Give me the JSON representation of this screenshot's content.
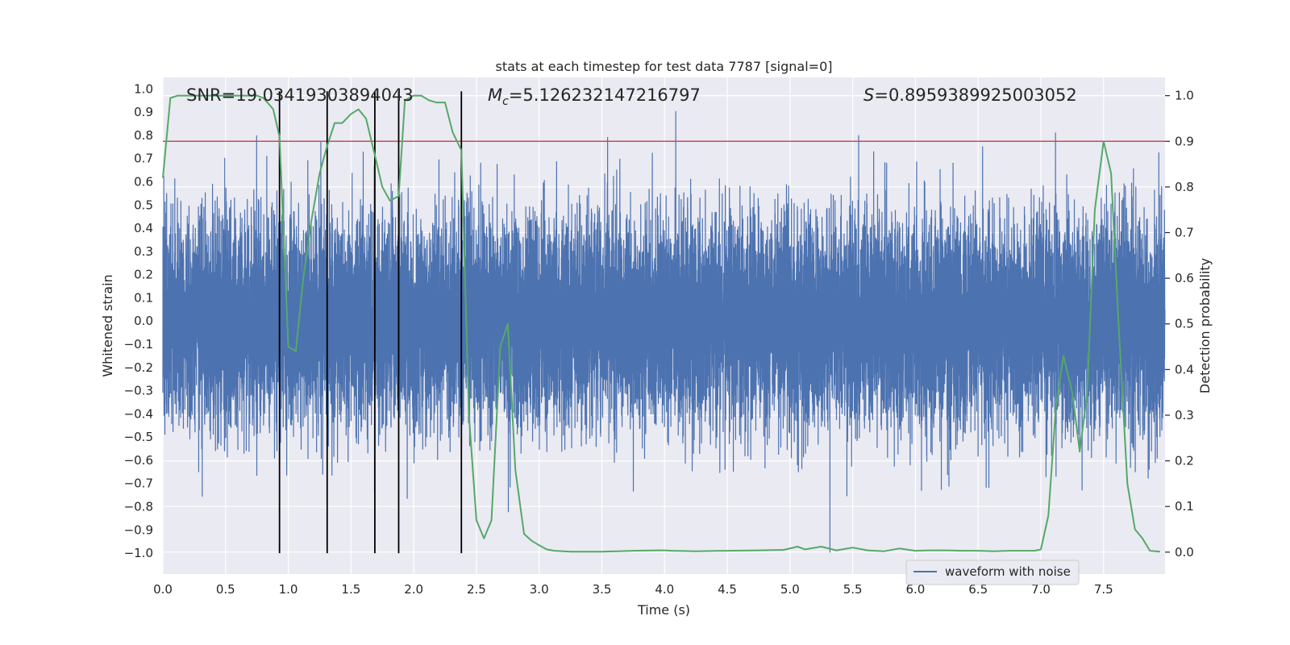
{
  "chart_data": {
    "type": "line",
    "title": "stats at each timestep for test data 7787 [signal=0]",
    "xlabel": "Time (s)",
    "ylabel": "Whitened strain",
    "y2label": "Detection probability",
    "xlim": [
      0.0,
      7.99
    ],
    "ylim": [
      -1.09,
      1.05
    ],
    "y2lim": [
      -0.048,
      1.04
    ],
    "xticks": [
      0.0,
      0.5,
      1.0,
      1.5,
      2.0,
      2.5,
      3.0,
      3.5,
      4.0,
      4.5,
      5.0,
      5.5,
      6.0,
      6.5,
      7.0,
      7.5
    ],
    "yticks": [
      1.0,
      0.9,
      0.8,
      0.7,
      0.6,
      0.5,
      0.4,
      0.3,
      0.2,
      0.1,
      0.0,
      -0.1,
      -0.2,
      -0.3,
      -0.4,
      -0.5,
      -0.6,
      -0.7,
      -0.8,
      -0.9,
      -1.0
    ],
    "y2ticks": [
      1.0,
      0.9,
      0.8,
      0.7,
      0.6,
      0.5,
      0.4,
      0.3,
      0.2,
      0.1,
      0.0
    ],
    "grid": true,
    "annotations": {
      "snr": "SNR=19.03419303894043",
      "mc_symbol": "M",
      "mc_sub": "c",
      "mc_value": "=5.126232147216797",
      "s_symbol": "S",
      "s_value": "=0.8959389925003052"
    },
    "legend": {
      "label": "waveform with noise",
      "location": "lower-right"
    },
    "threshold": {
      "value": 0.9,
      "axis": "right",
      "color": "#c44e52"
    },
    "vertical_markers": {
      "x": [
        0.93,
        1.31,
        1.69,
        1.88,
        2.38
      ],
      "y_from": -1.0,
      "y_to": 0.99,
      "color": "#000000"
    },
    "series": [
      {
        "name": "waveform with noise",
        "axis": "left",
        "color": "#4c72b0",
        "sample_rate_hz": 2048,
        "noise_scale": 0.22,
        "seed": 7787
      },
      {
        "name": "detection probability",
        "axis": "right",
        "color": "#55a868",
        "x": [
          0.0,
          0.06,
          0.12,
          0.25,
          0.5,
          0.75,
          0.8,
          0.85,
          0.88,
          0.93,
          1.0,
          1.06,
          1.12,
          1.18,
          1.25,
          1.31,
          1.37,
          1.43,
          1.5,
          1.56,
          1.62,
          1.69,
          1.75,
          1.81,
          1.88,
          1.93,
          2.0,
          2.06,
          2.12,
          2.18,
          2.25,
          2.31,
          2.38,
          2.44,
          2.5,
          2.56,
          2.62,
          2.69,
          2.75,
          2.81,
          2.88,
          2.94,
          3.0,
          3.06,
          3.12,
          3.25,
          3.5,
          3.75,
          3.95,
          4.0,
          4.06,
          4.25,
          4.5,
          4.75,
          4.95,
          5.06,
          5.12,
          5.25,
          5.37,
          5.5,
          5.62,
          5.75,
          5.87,
          6.0,
          6.12,
          6.25,
          6.37,
          6.5,
          6.62,
          6.75,
          6.87,
          6.95,
          7.0,
          7.06,
          7.12,
          7.18,
          7.25,
          7.31,
          7.37,
          7.43,
          7.5,
          7.56,
          7.62,
          7.69,
          7.75,
          7.81,
          7.87,
          7.95
        ],
        "y": [
          0.82,
          0.995,
          1.0,
          1.0,
          1.0,
          1.0,
          0.995,
          0.98,
          0.97,
          0.91,
          0.45,
          0.44,
          0.6,
          0.72,
          0.83,
          0.89,
          0.94,
          0.94,
          0.96,
          0.97,
          0.95,
          0.87,
          0.8,
          0.77,
          0.78,
          0.99,
          1.0,
          1.0,
          0.99,
          0.985,
          0.985,
          0.92,
          0.88,
          0.3,
          0.07,
          0.03,
          0.07,
          0.45,
          0.5,
          0.18,
          0.04,
          0.025,
          0.015,
          0.006,
          0.003,
          0.001,
          0.001,
          0.003,
          0.004,
          0.004,
          0.003,
          0.002,
          0.003,
          0.004,
          0.005,
          0.012,
          0.006,
          0.012,
          0.004,
          0.01,
          0.004,
          0.002,
          0.008,
          0.003,
          0.004,
          0.004,
          0.003,
          0.003,
          0.002,
          0.003,
          0.003,
          0.003,
          0.006,
          0.08,
          0.32,
          0.43,
          0.35,
          0.22,
          0.35,
          0.75,
          0.9,
          0.83,
          0.5,
          0.15,
          0.05,
          0.03,
          0.003,
          0.001
        ]
      }
    ]
  }
}
